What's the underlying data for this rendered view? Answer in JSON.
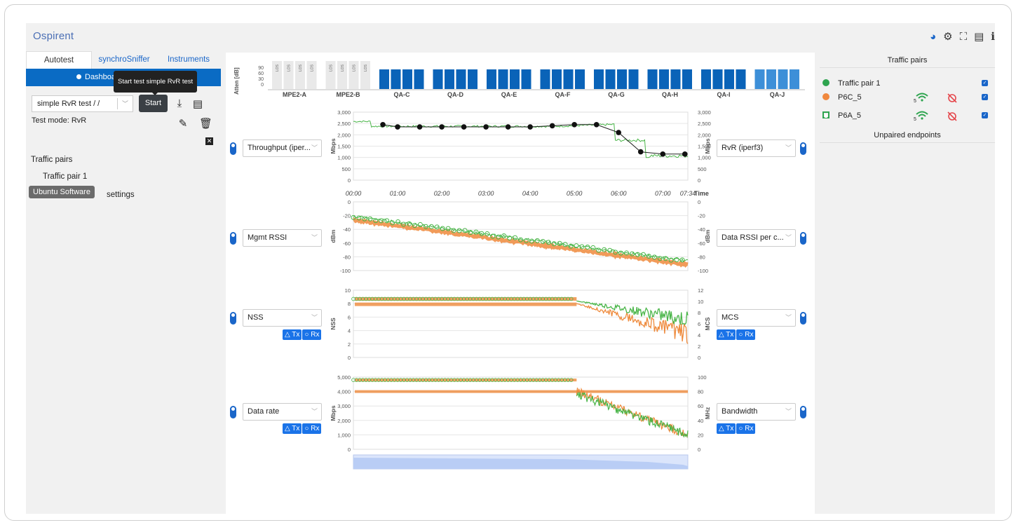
{
  "app": {
    "logo": "Ospirent"
  },
  "top_icons": [
    "dashboard-icon",
    "gear-icon",
    "network-icon",
    "document-icon",
    "info-icon"
  ],
  "tabs": [
    {
      "label": "Autotest",
      "active": true
    },
    {
      "label": "synchroSniffer",
      "active": false
    },
    {
      "label": "Instruments",
      "active": false
    }
  ],
  "dashboard": {
    "label": "Dashboard",
    "tooltip": "Start test simple RvR test"
  },
  "test": {
    "select_value": "simple RvR test / /",
    "start_label": "Start",
    "mode": "Test mode: RvR"
  },
  "left_panel": {
    "traffic_pairs_heading": "Traffic pairs",
    "traffic_pair_item": "Traffic pair 1",
    "setup_settings": "settings",
    "ubuntu_tooltip": "Ubuntu Software"
  },
  "atten": {
    "ylabel": "Atten [dB]",
    "yticks": [
      "90",
      "60",
      "30",
      "0"
    ],
    "los_label": "LOS",
    "groups": [
      "MPE2-A",
      "MPE2-B",
      "QA-C",
      "QA-D",
      "QA-E",
      "QA-F",
      "QA-G",
      "QA-H",
      "QA-I",
      "QA-J"
    ]
  },
  "controls": {
    "left": [
      "Throughput (iper...",
      "Mgmt RSSI",
      "NSS",
      "Data rate"
    ],
    "right": [
      "RvR (iperf3)",
      "Data RSSI per c...",
      "MCS",
      "Bandwidth"
    ],
    "tx_label": "△ Tx",
    "rx_label": "○ Rx"
  },
  "charts": {
    "time_ticks": [
      "00:00",
      "01:00",
      "02:00",
      "03:00",
      "04:00",
      "05:00",
      "06:00",
      "07:00",
      "07:34"
    ],
    "time_label": "Time",
    "throughput": {
      "ylabel": "Mbps",
      "yticks": [
        "3,000",
        "2,500",
        "2,000",
        "1,500",
        "1,000",
        "500",
        "0"
      ]
    },
    "rssi": {
      "ylabel": "dBm",
      "yticks": [
        "0",
        "-20",
        "-40",
        "-60",
        "-80",
        "-100"
      ]
    },
    "nss": {
      "ylabel": "NSS",
      "yticks": [
        "10",
        "8",
        "6",
        "4",
        "2",
        "0"
      ],
      "ylabel_right": "MCS",
      "yticks_right": [
        "12",
        "10",
        "8",
        "6",
        "4",
        "2",
        "0"
      ]
    },
    "datarate": {
      "ylabel": "Mbps",
      "yticks": [
        "5,000",
        "4,000",
        "3,000",
        "2,000",
        "1,000",
        "0"
      ],
      "ylabel_right": "MHz",
      "yticks_right": [
        "100",
        "80",
        "60",
        "40",
        "20",
        "0"
      ]
    }
  },
  "chart_data": [
    {
      "type": "line",
      "xlabel": "Time",
      "ylabel": "Mbps",
      "ylim": [
        0,
        3000
      ],
      "x": [
        "00:40",
        "01:00",
        "01:30",
        "02:00",
        "02:30",
        "03:00",
        "03:30",
        "04:00",
        "04:30",
        "05:00",
        "05:30",
        "06:00",
        "06:30",
        "07:00",
        "07:30"
      ],
      "series": [
        {
          "name": "RvR (iperf3)",
          "values": [
            2450,
            2350,
            2350,
            2350,
            2350,
            2350,
            2350,
            2350,
            2400,
            2450,
            2450,
            2100,
            1250,
            1150,
            1150
          ]
        }
      ]
    }
  ],
  "right_panel": {
    "title": "Traffic pairs",
    "pair": "Traffic pair 1",
    "endpoints": [
      "P6C_5",
      "P6A_5"
    ],
    "wifi_sub": "5",
    "unpaired": "Unpaired endpoints",
    "colors": {
      "pair": "#2ea44f",
      "p6c": "#f0883e",
      "p6a": "#2ea44f"
    }
  }
}
